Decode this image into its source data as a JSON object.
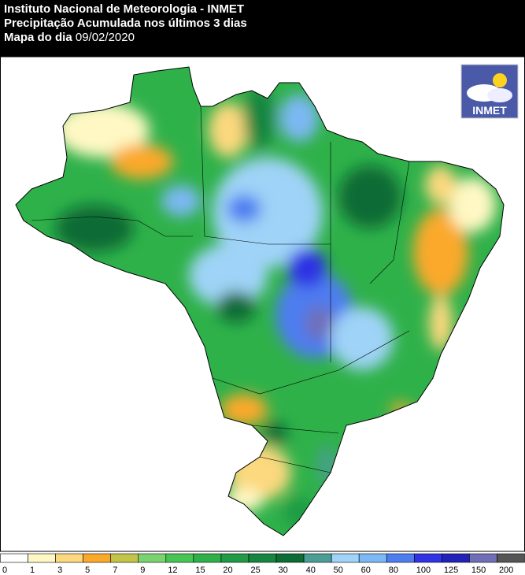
{
  "header": {
    "line1": "Instituto Nacional de Meteorologia - INMET",
    "line2": "Precipitação Acumulada nos últimos 3 dias",
    "line3_label": "Mapa do dia",
    "date": "09/02/2020"
  },
  "logo": {
    "text": "INMET"
  },
  "legend": {
    "labels": [
      0,
      1,
      3,
      5,
      7,
      9,
      12,
      15,
      20,
      25,
      30,
      40,
      50,
      60,
      80,
      100,
      125,
      150,
      200
    ],
    "colors": [
      "#ffffff",
      "#fff8c4",
      "#fcd87e",
      "#fba92b",
      "#c2c447",
      "#79d36f",
      "#45c553",
      "#2fb14a",
      "#1f9b45",
      "#158540",
      "#0c6c36",
      "#4c9d96",
      "#9fd3f7",
      "#7cb8f3",
      "#4e7df0",
      "#2f33e4",
      "#2222b8",
      "#6f6fb8",
      "#555555"
    ]
  }
}
